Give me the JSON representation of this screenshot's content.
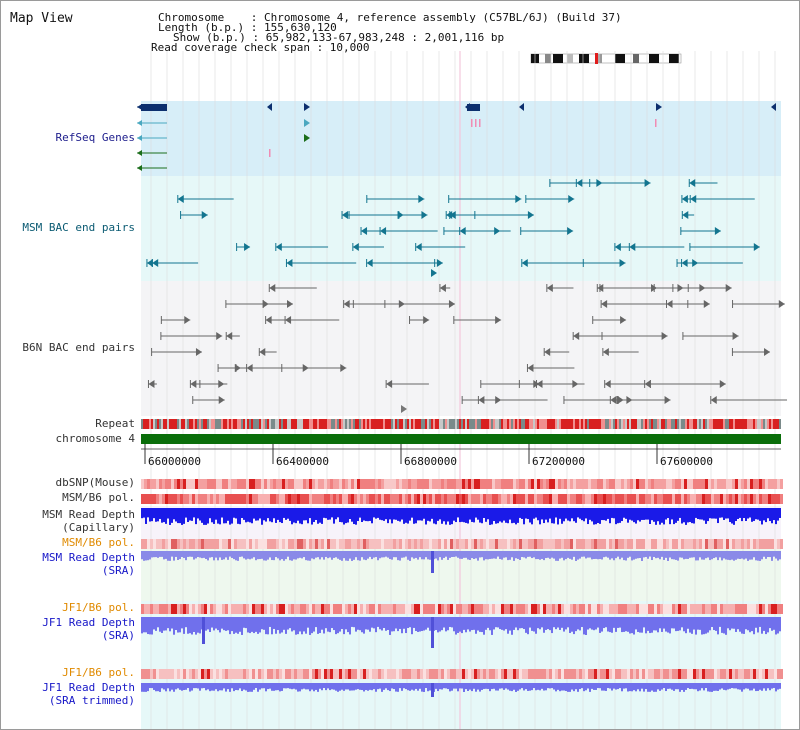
{
  "header": {
    "title": "Map View",
    "chromosome_line": "Chromosome    : Chromosome 4, reference assembly (C57BL/6J) (Build 37)",
    "length_line": "Length (b.p.) : 155,630,120",
    "show_line": "Show (b.p.) : 65,982,133-67,983,248 : 2,001,116 bp",
    "coverage_line": "Read coverage check span : 10,000"
  },
  "tracks": {
    "refseq_label": "RefSeq Genes",
    "msm_bac_label": "MSM BAC end pairs",
    "b6n_bac_label": "B6N BAC end pairs",
    "repeat_label": "Repeat",
    "chromosome_label": "chromosome 4",
    "dbsnp_label": "dbSNP(Mouse)",
    "msm_b6_pol_label": "MSM/B6 pol.",
    "msm_read_depth_cap_label": "MSM Read Depth\n(Capillary)",
    "msm_b6_pol2_label": "MSM/B6 pol.",
    "msm_read_depth_sra_label": "MSM Read Depth\n(SRA)",
    "jf1_b6_pol_label": "JF1/B6 pol.",
    "jf1_read_depth_sra_label": "JF1 Read Depth\n(SRA)",
    "jf1_b6_pol2_label": "JF1/B6 pol.",
    "jf1_read_depth_trim_label": "JF1 Read Depth\n(SRA trimmed)"
  },
  "axis": {
    "ticks": [
      "66000000",
      "66400000",
      "66800000",
      "67200000",
      "67600000"
    ]
  },
  "colors": {
    "navy": "#1d1d8c",
    "teal": "#0a5a72",
    "orange": "#e08a00",
    "chromosome_green": "#0a6e0a",
    "refseq_bg": "#d7eef8",
    "msm_bg": "#e6f8f8",
    "b6n_bg": "#f4f4f6"
  }
}
